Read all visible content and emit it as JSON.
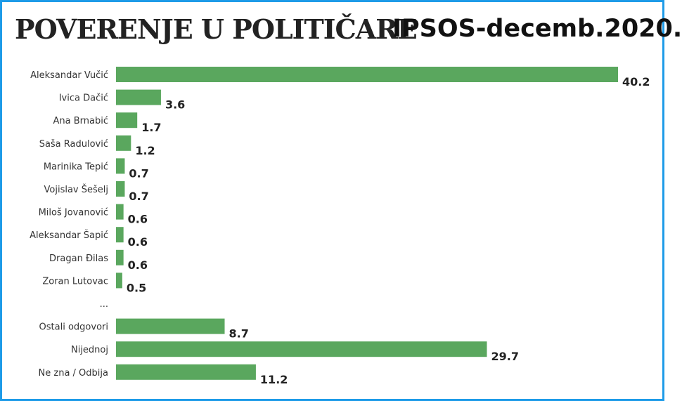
{
  "header": {
    "title": "POVERENJE U POLITIČARE",
    "subtitle": "IPSOS-decemb.2020."
  },
  "colors": {
    "bar": "#5aa75e",
    "border": "#1e9be8"
  },
  "chart_data": {
    "type": "bar",
    "orientation": "horizontal",
    "categories": [
      "Aleksandar Vučić",
      "Ivica Dačić",
      "Ana Brnabić",
      "Saša Radulović",
      "Marinika Tepić",
      "Vojislav Šešelj",
      "Miloš Jovanović",
      "Aleksandar Šapić",
      "Dragan Đilas",
      "Zoran Lutovac",
      "...",
      "Ostali odgovori",
      "Nijednoj",
      "Ne zna / Odbija"
    ],
    "values": [
      40.2,
      3.6,
      1.7,
      1.2,
      0.7,
      0.7,
      0.6,
      0.6,
      0.6,
      0.5,
      null,
      8.7,
      29.7,
      11.2
    ],
    "value_labels": [
      "40.2",
      "3.6",
      "1.7",
      "1.2",
      "0.7",
      "0.7",
      "0.6",
      "0.6",
      "0.6",
      "0.5",
      "",
      "8.7",
      "29.7",
      "11.2"
    ],
    "xlim": [
      0,
      40.2
    ],
    "grid": false,
    "legend": "none"
  }
}
